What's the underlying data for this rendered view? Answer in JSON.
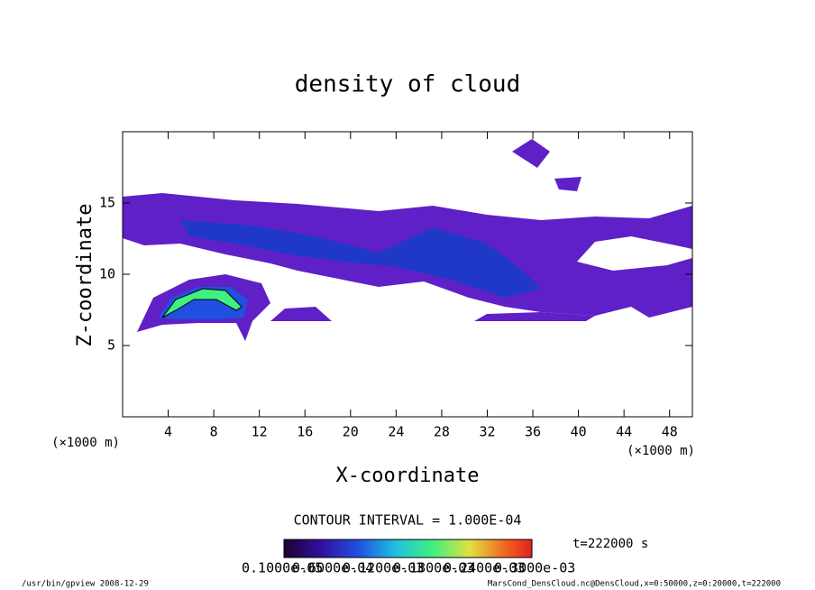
{
  "chart_data": {
    "type": "contour",
    "title": "density of cloud",
    "x_label": "X-coordinate",
    "y_label": "Z-coordinate",
    "x_unit_left": "(×1000 m)",
    "x_unit_right": "(×1000 m)",
    "xlim": [
      0,
      50
    ],
    "ylim": [
      0,
      20
    ],
    "xticks": [
      4,
      8,
      12,
      16,
      20,
      24,
      28,
      32,
      36,
      40,
      44,
      48
    ],
    "yticks": [
      5,
      10,
      15
    ],
    "contour_interval": "CONTOUR INTERVAL = 1.000E-04",
    "time_label": "t=222000 s",
    "colorbar_labels": [
      "0.1000e-05",
      "0.6000e-04",
      "0.1200e-03",
      "0.1800e-03",
      "0.2400e-03",
      "0.3000e-03"
    ],
    "footer_left": "/usr/bin/gpview  2008-12-29",
    "footer_right": "MarsCond_DensCloud.nc@DensCloud,x=0:50000,z=0:20000,t=222000"
  }
}
